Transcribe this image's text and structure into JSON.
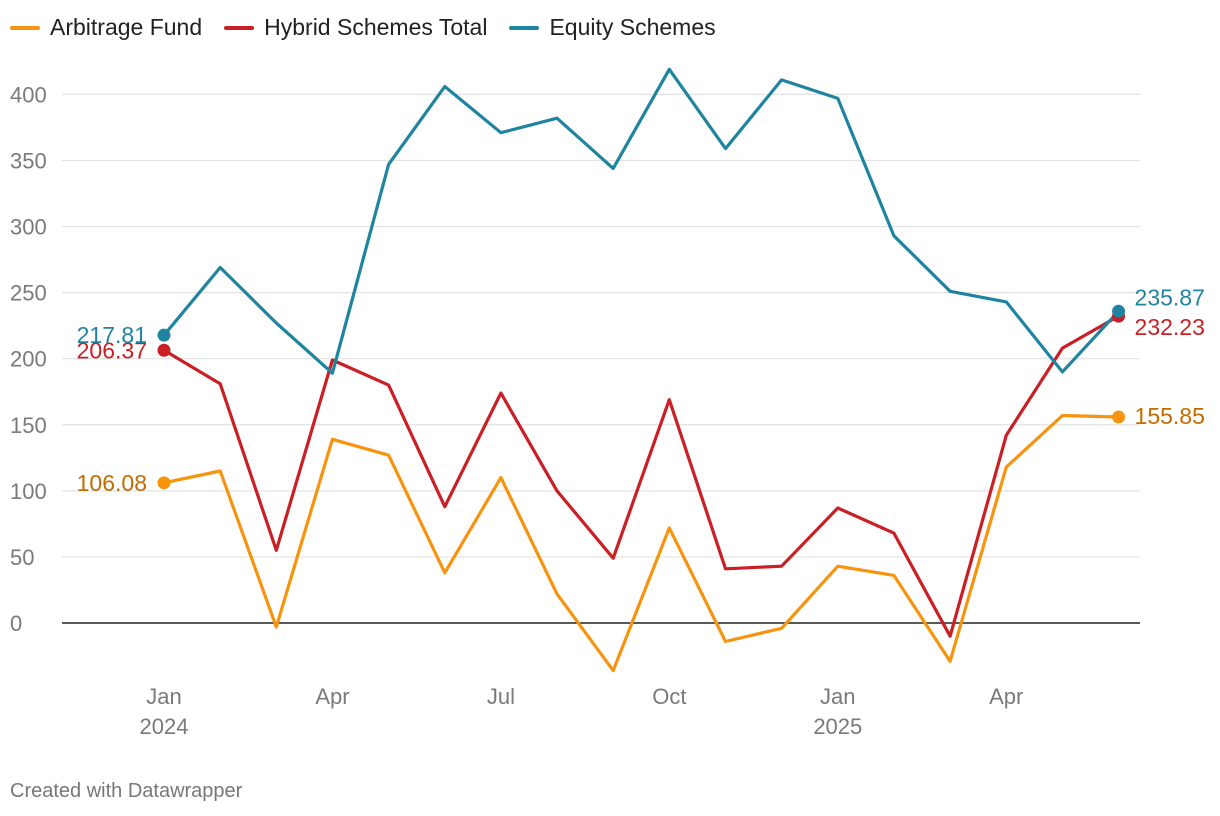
{
  "chart_data": {
    "type": "line",
    "x": [
      "2024-01",
      "2024-02",
      "2024-03",
      "2024-04",
      "2024-05",
      "2024-06",
      "2024-07",
      "2024-08",
      "2024-09",
      "2024-10",
      "2024-11",
      "2024-12",
      "2025-01",
      "2025-02",
      "2025-03",
      "2025-04",
      "2025-05",
      "2025-06"
    ],
    "series": [
      {
        "name": "Arbitrage Fund",
        "color": "#f7940f",
        "label_color": "#c46b00",
        "values": [
          106.08,
          115,
          -3,
          139,
          127,
          38,
          110,
          22,
          -36,
          72,
          -14,
          -4,
          43,
          36,
          -29,
          118,
          157,
          155.85
        ],
        "start_label": "106.08",
        "end_label": "155.85"
      },
      {
        "name": "Hybrid Schemes Total",
        "color": "#c91f25",
        "label_color": "#c91f25",
        "values": [
          206.37,
          181,
          55,
          199,
          180,
          88,
          174,
          100,
          49,
          169,
          41,
          43,
          87,
          68,
          -10,
          142,
          208,
          232.23
        ],
        "start_label": "206.37",
        "end_label": "232.23"
      },
      {
        "name": "Equity Schemes",
        "color": "#1f84a0",
        "label_color": "#1f84a0",
        "values": [
          217.81,
          269,
          227,
          189,
          347,
          406,
          371,
          382,
          344,
          419,
          359,
          411,
          397,
          293,
          251,
          243,
          190,
          235.87
        ],
        "start_label": "217.81",
        "end_label": "235.87"
      }
    ],
    "ylim": [
      -36,
      420
    ],
    "yticks": [
      "0",
      "50",
      "100",
      "150",
      "200",
      "250",
      "300",
      "350",
      "400"
    ],
    "xticks": [
      {
        "month_index": 0,
        "label": "Jan",
        "year": "2024"
      },
      {
        "month_index": 3,
        "label": "Apr",
        "year": ""
      },
      {
        "month_index": 6,
        "label": "Jul",
        "year": ""
      },
      {
        "month_index": 9,
        "label": "Oct",
        "year": ""
      },
      {
        "month_index": 12,
        "label": "Jan",
        "year": "2025"
      },
      {
        "month_index": 15,
        "label": "Apr",
        "year": ""
      }
    ],
    "grid": true,
    "legend": "top-left"
  },
  "legend": {
    "items": [
      "Arbitrage Fund",
      "Hybrid Schemes Total",
      "Equity Schemes"
    ]
  },
  "credit": "Created with Datawrapper"
}
